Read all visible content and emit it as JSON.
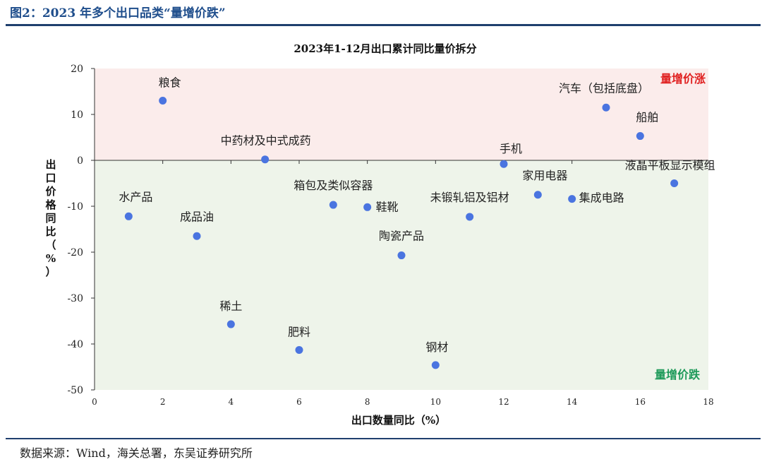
{
  "figure": {
    "title": "图2：2023 年多个出口品类“量增价跌”",
    "source": "数据来源：Wind，海关总署，东吴证券研究所"
  },
  "chart_data": {
    "type": "scatter",
    "title": "2023年1-12月出口累计同比量价拆分",
    "xlabel": "出口数量同比（%）",
    "ylabel": "出口价格同比（%）",
    "xlim": [
      0,
      18
    ],
    "ylim": [
      -50,
      20
    ],
    "xticks": [
      0,
      2,
      4,
      6,
      8,
      10,
      12,
      14,
      16,
      18
    ],
    "yticks": [
      20,
      10,
      0,
      -10,
      -20,
      -30,
      -40,
      -50
    ],
    "grid": false,
    "regions": [
      {
        "label": "量增价涨",
        "y_range": [
          0,
          20
        ],
        "fill": "#fbeceb",
        "label_color": "#e02020"
      },
      {
        "label": "量增价跌",
        "y_range": [
          -50,
          0
        ],
        "fill": "#eef4ea",
        "label_color": "#1e9a5a"
      }
    ],
    "point_color": "#4a74e0",
    "points": [
      {
        "label": "粮食",
        "x": 2.0,
        "y": 13.0
      },
      {
        "label": "中药材及中式成药",
        "x": 5.0,
        "y": 0.2
      },
      {
        "label": "手机",
        "x": 12.0,
        "y": -0.8
      },
      {
        "label": "汽车（包括底盘）",
        "x": 15.0,
        "y": 11.5
      },
      {
        "label": "船舶",
        "x": 16.0,
        "y": 5.3
      },
      {
        "label": "液晶平板显示模组",
        "x": 17.0,
        "y": -5.0
      },
      {
        "label": "水产品",
        "x": 1.0,
        "y": -12.2
      },
      {
        "label": "成品油",
        "x": 3.0,
        "y": -16.5
      },
      {
        "label": "箱包及类似容器",
        "x": 7.0,
        "y": -9.7
      },
      {
        "label": "鞋靴",
        "x": 8.0,
        "y": -10.2
      },
      {
        "label": "未锻轧铝及铝材",
        "x": 11.0,
        "y": -12.3
      },
      {
        "label": "家用电器",
        "x": 13.0,
        "y": -7.5
      },
      {
        "label": "集成电路",
        "x": 14.0,
        "y": -8.4
      },
      {
        "label": "陶瓷产品",
        "x": 9.0,
        "y": -20.7
      },
      {
        "label": "稀土",
        "x": 4.0,
        "y": -35.7
      },
      {
        "label": "肥料",
        "x": 6.0,
        "y": -41.3
      },
      {
        "label": "钢材",
        "x": 10.0,
        "y": -44.6
      }
    ]
  }
}
